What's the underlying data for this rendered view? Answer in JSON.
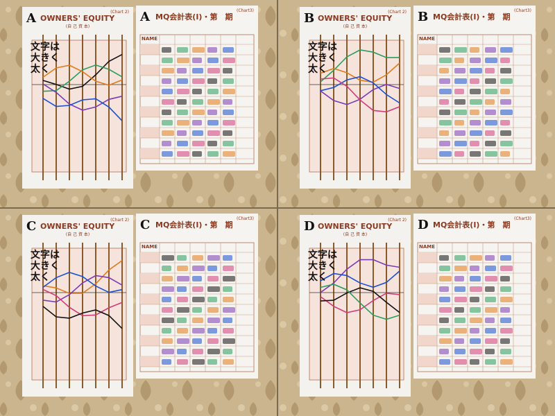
{
  "panels": [
    {
      "letter": "A",
      "equity_title": "OWNERS' EQUITY",
      "equity_chart": "(Chart 2)",
      "equity_sub": "(自 己 資 本)",
      "note": [
        "文字は",
        "大きく",
        "太く"
      ],
      "mq_letter": "A",
      "mq_title": "MQ会計表(I)・第　期",
      "mq_chart": "(Chart3)",
      "mq_name": "NAME"
    },
    {
      "letter": "B",
      "equity_title": "OWNERS' EQUITY",
      "equity_chart": "(Chart 2)",
      "equity_sub": "(自 己 資 本)",
      "note": [
        "文字は",
        "大きく",
        "太く"
      ],
      "mq_letter": "B",
      "mq_title": "MQ会計表(I)・第　期",
      "mq_chart": "(Chart3)",
      "mq_name": "NAME"
    },
    {
      "letter": "C",
      "equity_title": "OWNERS' EQUITY",
      "equity_chart": "(Chart 2)",
      "equity_sub": "(自 己 資 本)",
      "note": [
        "文字は",
        "大きく",
        "太く"
      ],
      "mq_letter": "C",
      "mq_title": "MQ会計表(I)・第　期",
      "mq_chart": "(Chart3)",
      "mq_name": "NAME"
    },
    {
      "letter": "D",
      "equity_title": "OWNERS' EQUITY",
      "equity_chart": "(Chart 2)",
      "equity_sub": "(自 己 資 本)",
      "note": [
        "文字は",
        "大きく",
        "太く"
      ],
      "mq_letter": "D",
      "mq_title": "MQ会計表(I)・第　期",
      "mq_chart": "(Chart3)",
      "mq_name": "NAME"
    }
  ]
}
